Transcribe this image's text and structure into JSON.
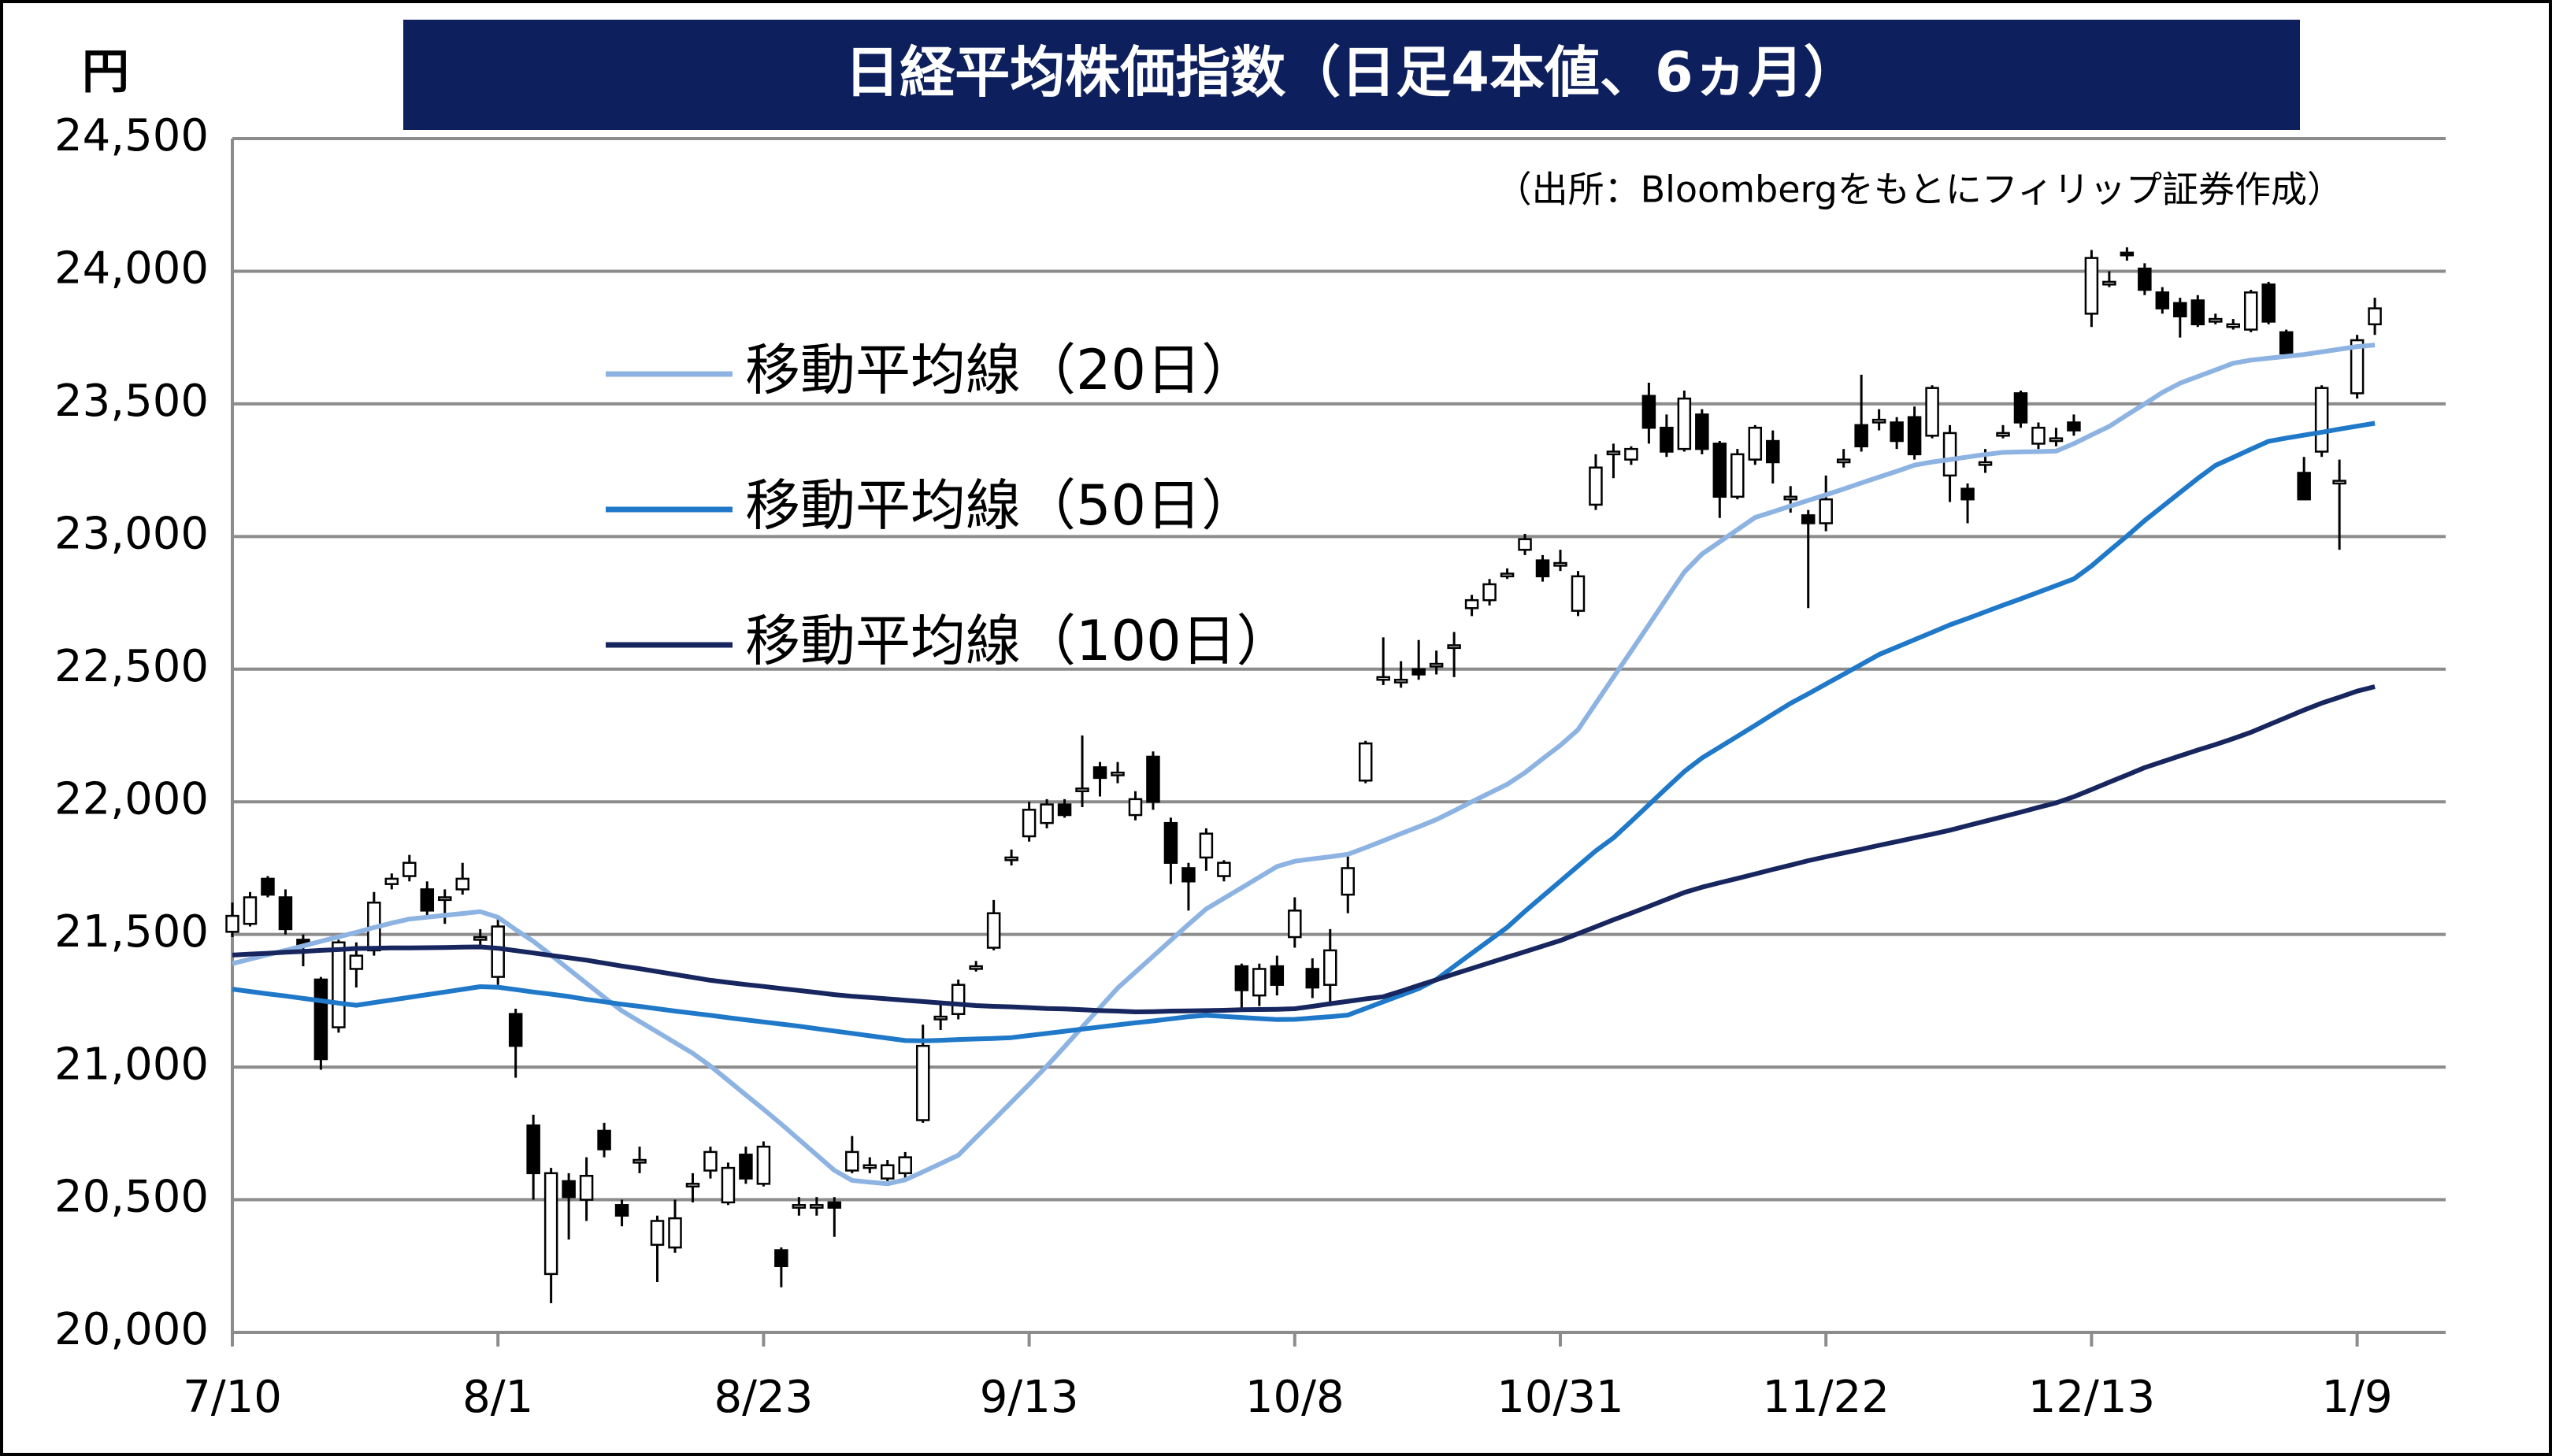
{
  "chart_data": {
    "type": "candlestick",
    "title": "日経平均株価指数（日足4本値、6ヵ月）",
    "unit": "円",
    "source": "（出所：Bloombergをもとにフィリップ証券作成）",
    "categories": [
      "7/10",
      null,
      null,
      null,
      null,
      null,
      null,
      null,
      null,
      null,
      null,
      null,
      null,
      null,
      null,
      "8/1",
      null,
      null,
      null,
      null,
      null,
      null,
      null,
      null,
      null,
      null,
      null,
      null,
      null,
      null,
      "8/23",
      null,
      null,
      null,
      null,
      null,
      null,
      null,
      null,
      null,
      null,
      null,
      null,
      null,
      null,
      "9/13",
      null,
      null,
      null,
      null,
      null,
      null,
      null,
      null,
      null,
      null,
      null,
      null,
      null,
      null,
      "10/8",
      null,
      null,
      null,
      null,
      null,
      null,
      null,
      null,
      null,
      null,
      null,
      null,
      null,
      null,
      "10/31",
      null,
      null,
      null,
      null,
      null,
      null,
      null,
      null,
      null,
      null,
      null,
      null,
      null,
      null,
      "11/22",
      null,
      null,
      null,
      null,
      null,
      null,
      null,
      null,
      null,
      null,
      null,
      null,
      null,
      null,
      "12/13",
      null,
      null,
      null,
      null,
      null,
      null,
      null,
      null,
      null,
      null,
      null,
      null,
      null,
      null,
      "1/9",
      null
    ],
    "open": [
      21510,
      21540,
      21710,
      21640,
      21480,
      21330,
      21150,
      21370,
      21440,
      21690,
      21720,
      21670,
      21630,
      21670,
      21480,
      21340,
      21200,
      20780,
      20220,
      20570,
      20500,
      20760,
      20480,
      20640,
      20330,
      20320,
      20550,
      20610,
      20490,
      20670,
      20560,
      20310,
      20470,
      20470,
      20490,
      20610,
      20620,
      20580,
      20600,
      20800,
      21180,
      21200,
      21370,
      21450,
      21780,
      21870,
      21920,
      21990,
      22040,
      22130,
      22100,
      21950,
      22170,
      21920,
      21750,
      21790,
      21720,
      21380,
      21270,
      21380,
      21490,
      21370,
      21310,
      21650,
      22080,
      22460,
      22450,
      22500,
      22510,
      22580,
      22730,
      22760,
      22850,
      22950,
      22910,
      22890,
      22720,
      23120,
      23310,
      23290,
      23530,
      23410,
      23330,
      23460,
      23350,
      23150,
      23290,
      23360,
      23140,
      23080,
      23050,
      23280,
      23420,
      23430,
      23430,
      23450,
      23380,
      23230,
      23180,
      23270,
      23380,
      23540,
      23350,
      23360,
      23430,
      23840,
      23950,
      24070,
      24010,
      23920,
      23880,
      23890,
      23810,
      23790,
      23780,
      23950,
      23770,
      23240,
      23320,
      23200,
      23540,
      23800
    ],
    "high": [
      21620,
      21660,
      21720,
      21670,
      21500,
      21340,
      21480,
      21470,
      21660,
      21730,
      21800,
      21700,
      21670,
      21770,
      21520,
      21560,
      21220,
      20820,
      20620,
      20600,
      20660,
      20790,
      20500,
      20700,
      20440,
      20500,
      20600,
      20700,
      20640,
      20700,
      20720,
      20320,
      20510,
      20510,
      20510,
      20740,
      20660,
      20650,
      20680,
      21160,
      21250,
      21330,
      21400,
      21630,
      21820,
      22000,
      22010,
      22010,
      22250,
      22150,
      22150,
      22040,
      22190,
      21940,
      21770,
      21900,
      21780,
      21390,
      21390,
      21420,
      21640,
      21410,
      21520,
      21800,
      22230,
      22620,
      22530,
      22610,
      22570,
      22640,
      22780,
      22840,
      22880,
      23010,
      22930,
      22950,
      22870,
      23310,
      23350,
      23340,
      23580,
      23460,
      23550,
      23480,
      23360,
      23330,
      23420,
      23400,
      23190,
      23100,
      23230,
      23330,
      23610,
      23480,
      23450,
      23490,
      23570,
      23420,
      23200,
      23330,
      23420,
      23550,
      23430,
      23410,
      23460,
      24080,
      24000,
      24090,
      24030,
      23940,
      23900,
      23910,
      23840,
      23820,
      23930,
      23960,
      23780,
      23300,
      23570,
      23290,
      23760,
      23900
    ],
    "low": [
      21490,
      21530,
      21640,
      21500,
      21380,
      20990,
      21130,
      21300,
      21420,
      21670,
      21700,
      21570,
      21540,
      21650,
      21460,
      21310,
      20960,
      20500,
      20110,
      20350,
      20420,
      20660,
      20400,
      20600,
      20190,
      20300,
      20490,
      20580,
      20480,
      20560,
      20550,
      20170,
      20440,
      20440,
      20360,
      20600,
      20600,
      20570,
      20580,
      20790,
      21140,
      21180,
      21360,
      21440,
      21760,
      21850,
      21900,
      21940,
      21980,
      22020,
      22070,
      21930,
      21970,
      21690,
      21590,
      21740,
      21700,
      21220,
      21230,
      21270,
      21450,
      21260,
      21230,
      21580,
      22070,
      22440,
      22430,
      22460,
      22480,
      22470,
      22700,
      22740,
      22840,
      22930,
      22830,
      22870,
      22700,
      23100,
      23220,
      23270,
      23350,
      23300,
      23320,
      23310,
      23070,
      23140,
      23270,
      23200,
      23090,
      22730,
      23020,
      23260,
      23320,
      23400,
      23330,
      23290,
      23370,
      23130,
      23050,
      23240,
      23370,
      23410,
      23330,
      23340,
      23380,
      23790,
      23940,
      24040,
      23910,
      23840,
      23750,
      23790,
      23800,
      23780,
      23770,
      23800,
      23680,
      23140,
      23300,
      22950,
      23520,
      23760
    ],
    "close": [
      21570,
      21640,
      21650,
      21520,
      21460,
      21030,
      21470,
      21420,
      21620,
      21710,
      21770,
      21590,
      21640,
      21710,
      21490,
      21530,
      21080,
      20600,
      20600,
      20510,
      20590,
      20690,
      20440,
      20650,
      20420,
      20430,
      20560,
      20680,
      20620,
      20580,
      20700,
      20250,
      20480,
      20480,
      20470,
      20680,
      20630,
      20630,
      20660,
      21080,
      21190,
      21310,
      21380,
      21580,
      21790,
      21970,
      21990,
      21950,
      22050,
      22090,
      22110,
      22010,
      22000,
      21770,
      21700,
      21880,
      21770,
      21290,
      21370,
      21310,
      21590,
      21300,
      21440,
      21750,
      22220,
      22470,
      22460,
      22480,
      22520,
      22590,
      22760,
      22820,
      22860,
      22990,
      22850,
      22900,
      22850,
      23260,
      23320,
      23330,
      23410,
      23320,
      23520,
      23330,
      23150,
      23310,
      23410,
      23280,
      23150,
      23050,
      23140,
      23290,
      23340,
      23440,
      23360,
      23310,
      23560,
      23390,
      23140,
      23280,
      23390,
      23430,
      23410,
      23370,
      23400,
      24050,
      23960,
      24060,
      23930,
      23860,
      23830,
      23800,
      23820,
      23800,
      23920,
      23810,
      23690,
      23140,
      23560,
      23210,
      23740,
      23860
    ],
    "up_color": "#ffffff",
    "down_color": "#000000",
    "series": [
      {
        "name": "移動平均線（20日）",
        "color": "#8db3e2",
        "values": [
          21390,
          21407,
          21424,
          21440,
          21457,
          21474,
          21491,
          21508,
          21526,
          21543,
          21558,
          21565,
          21572,
          21579,
          21586,
          21565,
          21518,
          21474,
          21422,
          21369,
          21316,
          21263,
          21212,
          21172,
          21132,
          21092,
          21052,
          21004,
          20950,
          20895,
          20841,
          20785,
          20727,
          20669,
          20611,
          20573,
          20566,
          20560,
          20575,
          20605,
          20636,
          20668,
          20735,
          20801,
          20868,
          20935,
          21004,
          21077,
          21151,
          21224,
          21298,
          21358,
          21418,
          21478,
          21538,
          21596,
          21636,
          21676,
          21716,
          21756,
          21776,
          21785,
          21793,
          21802,
          21827,
          21853,
          21880,
          21906,
          21933,
          21966,
          22000,
          22033,
          22066,
          22110,
          22162,
          22213,
          22272,
          22371,
          22470,
          22568,
          22667,
          22767,
          22866,
          22934,
          22980,
          23026,
          23072,
          23093,
          23115,
          23136,
          23157,
          23179,
          23202,
          23224,
          23246,
          23269,
          23281,
          23290,
          23300,
          23309,
          23317,
          23319,
          23320,
          23322,
          23350,
          23383,
          23415,
          23458,
          23500,
          23543,
          23578,
          23603,
          23628,
          23653,
          23665,
          23672,
          23679,
          23686,
          23696,
          23706,
          23716,
          23722
        ]
      },
      {
        "name": "移動平均線（50日）",
        "color": "#1f78c8",
        "values": [
          21294,
          21285,
          21276,
          21268,
          21259,
          21250,
          21241,
          21233,
          21243,
          21253,
          21263,
          21273,
          21283,
          21293,
          21303,
          21301,
          21292,
          21283,
          21275,
          21266,
          21255,
          21246,
          21237,
          21229,
          21220,
          21211,
          21203,
          21195,
          21186,
          21178,
          21170,
          21162,
          21154,
          21145,
          21136,
          21127,
          21118,
          21109,
          21100,
          21099,
          21101,
          21104,
          21106,
          21108,
          21111,
          21119,
          21127,
          21135,
          21143,
          21151,
          21159,
          21167,
          21174,
          21182,
          21190,
          21195,
          21191,
          21187,
          21183,
          21179,
          21180,
          21185,
          21190,
          21196,
          21221,
          21246,
          21271,
          21296,
          21330,
          21380,
          21429,
          21478,
          21527,
          21587,
          21644,
          21701,
          21758,
          21815,
          21864,
          21926,
          21989,
          22052,
          22114,
          22165,
          22206,
          22247,
          22288,
          22330,
          22371,
          22407,
          22444,
          22481,
          22518,
          22555,
          22583,
          22611,
          22639,
          22667,
          22691,
          22716,
          22741,
          22765,
          22790,
          22815,
          22840,
          22889,
          22946,
          23002,
          23060,
          23113,
          23166,
          23219,
          23268,
          23298,
          23329,
          23359,
          23371,
          23382,
          23393,
          23405,
          23416,
          23427
        ]
      },
      {
        "name": "移動平均線（100日）",
        "color": "#17265e",
        "values": [
          21422,
          21426,
          21429,
          21433,
          21436,
          21440,
          21443,
          21447,
          21448,
          21449,
          21449,
          21450,
          21451,
          21452,
          21453,
          21448,
          21439,
          21430,
          21421,
          21412,
          21403,
          21392,
          21381,
          21371,
          21360,
          21349,
          21338,
          21327,
          21319,
          21311,
          21304,
          21296,
          21289,
          21281,
          21273,
          21267,
          21262,
          21257,
          21252,
          21247,
          21242,
          21237,
          21232,
          21229,
          21227,
          21224,
          21221,
          21219,
          21216,
          21213,
          21211,
          21208,
          21209,
          21211,
          21212,
          21213,
          21214,
          21216,
          21217,
          21218,
          21220,
          21229,
          21239,
          21248,
          21257,
          21265,
          21286,
          21308,
          21329,
          21351,
          21372,
          21393,
          21414,
          21435,
          21456,
          21477,
          21503,
          21529,
          21555,
          21580,
          21606,
          21632,
          21658,
          21678,
          21695,
          21711,
          21728,
          21745,
          21761,
          21778,
          21793,
          21807,
          21821,
          21836,
          21850,
          21864,
          21878,
          21893,
          21910,
          21927,
          21944,
          21961,
          21979,
          21996,
          22019,
          22046,
          22074,
          22101,
          22129,
          22151,
          22173,
          22195,
          22216,
          22238,
          22262,
          22290,
          22318,
          22346,
          22372,
          22394,
          22417,
          22434
        ]
      }
    ],
    "ylim": [
      20000,
      24500
    ],
    "yticks": [
      {
        "value": 20000,
        "label": "20,000"
      },
      {
        "value": 20500,
        "label": "20,500"
      },
      {
        "value": 21000,
        "label": "21,000"
      },
      {
        "value": 21500,
        "label": "21,500"
      },
      {
        "value": 22000,
        "label": "22,000"
      },
      {
        "value": 22500,
        "label": "22,500"
      },
      {
        "value": 23000,
        "label": "23,000"
      },
      {
        "value": 23500,
        "label": "23,500"
      },
      {
        "value": 24000,
        "label": "24,000"
      },
      {
        "value": 24500,
        "label": "24,500"
      }
    ],
    "grid": true
  }
}
